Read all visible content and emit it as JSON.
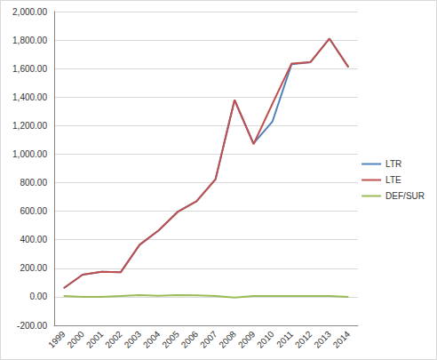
{
  "chart_data": {
    "type": "line",
    "categories": [
      "1999",
      "2000",
      "2001",
      "2002",
      "2003",
      "2004",
      "2005",
      "2006",
      "2007",
      "2008",
      "2009",
      "2010",
      "2011",
      "2012",
      "2013",
      "2014"
    ],
    "series": [
      {
        "name": "LTR",
        "color": "#4f81bd",
        "values": [
          60,
          155,
          175,
          172,
          365,
          465,
          595,
          670,
          825,
          1380,
          1075,
          1230,
          1630,
          1645,
          1810,
          1610
        ]
      },
      {
        "name": "LTE",
        "color": "#c0504d",
        "values": [
          60,
          155,
          175,
          172,
          365,
          465,
          595,
          670,
          825,
          1380,
          1070,
          1355,
          1635,
          1645,
          1810,
          1610
        ]
      },
      {
        "name": "DEF/SUR",
        "color": "#9bbb59",
        "values": [
          5,
          0,
          0,
          5,
          12,
          8,
          12,
          10,
          5,
          -5,
          5,
          5,
          5,
          5,
          5,
          0
        ]
      }
    ],
    "ylim": [
      -200,
      2000
    ],
    "yticks": [
      {
        "value": -200,
        "label": "-200.00"
      },
      {
        "value": 0,
        "label": "0.00"
      },
      {
        "value": 200,
        "label": "200.00"
      },
      {
        "value": 400,
        "label": "400.00"
      },
      {
        "value": 600,
        "label": "600.00"
      },
      {
        "value": 800,
        "label": "800.00"
      },
      {
        "value": 1000,
        "label": "1,000.00"
      },
      {
        "value": 1200,
        "label": "1,200.00"
      },
      {
        "value": 1400,
        "label": "1,400.00"
      },
      {
        "value": 1600,
        "label": "1,600.00"
      },
      {
        "value": 1800,
        "label": "1,800.00"
      },
      {
        "value": 2000,
        "label": "2,000.00"
      }
    ],
    "grid": true,
    "legend": "right"
  }
}
